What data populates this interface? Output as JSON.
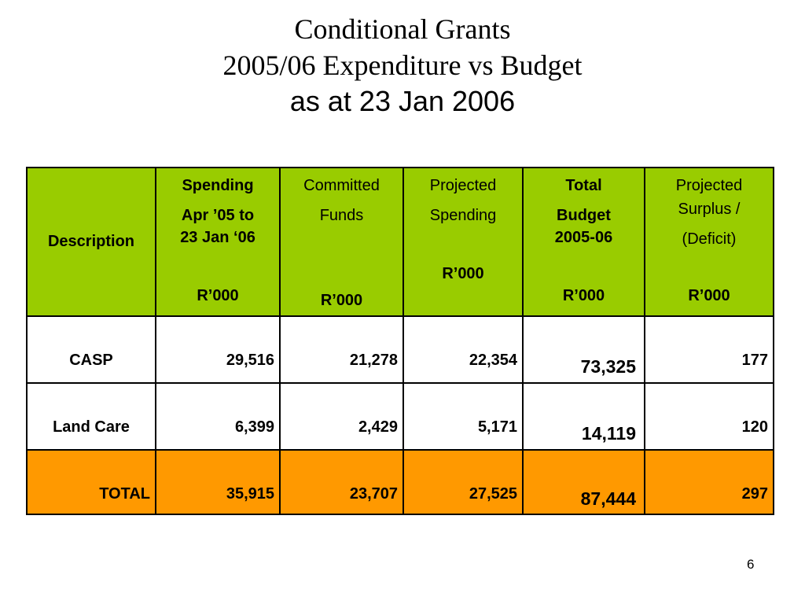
{
  "title": {
    "line1": "Conditional Grants",
    "line2": "2005/06 Expenditure vs Budget",
    "line3": "as at 23 Jan 2006"
  },
  "table": {
    "headers": {
      "description": "Description",
      "spending": [
        "Spending",
        "Apr ’05 to",
        "23 Jan ‘06",
        "R’000"
      ],
      "committed": [
        "Committed",
        "Funds",
        "R’000"
      ],
      "projected": [
        "Projected",
        "Spending",
        "R’000"
      ],
      "total_budget": [
        "Total",
        "Budget",
        "2005-06",
        "R’000"
      ],
      "surplus": [
        "Projected",
        "Surplus /",
        "(Deficit)",
        "R’000"
      ]
    },
    "rows": [
      {
        "description": "CASP",
        "spending": "29,516",
        "committed": "21,278",
        "projected": "22,354",
        "total_budget": "73,325",
        "surplus": "177"
      },
      {
        "description": "Land Care",
        "spending": "6,399",
        "committed": "2,429",
        "projected": "5,171",
        "total_budget": "14,119",
        "surplus": "120"
      },
      {
        "description": "TOTAL",
        "spending": "35,915",
        "committed": "23,707",
        "projected": "27,525",
        "total_budget": "87,444",
        "surplus": "297"
      }
    ]
  },
  "page_number": "6",
  "colors": {
    "header_green": "#99cc00",
    "total_orange": "#ff9900"
  }
}
